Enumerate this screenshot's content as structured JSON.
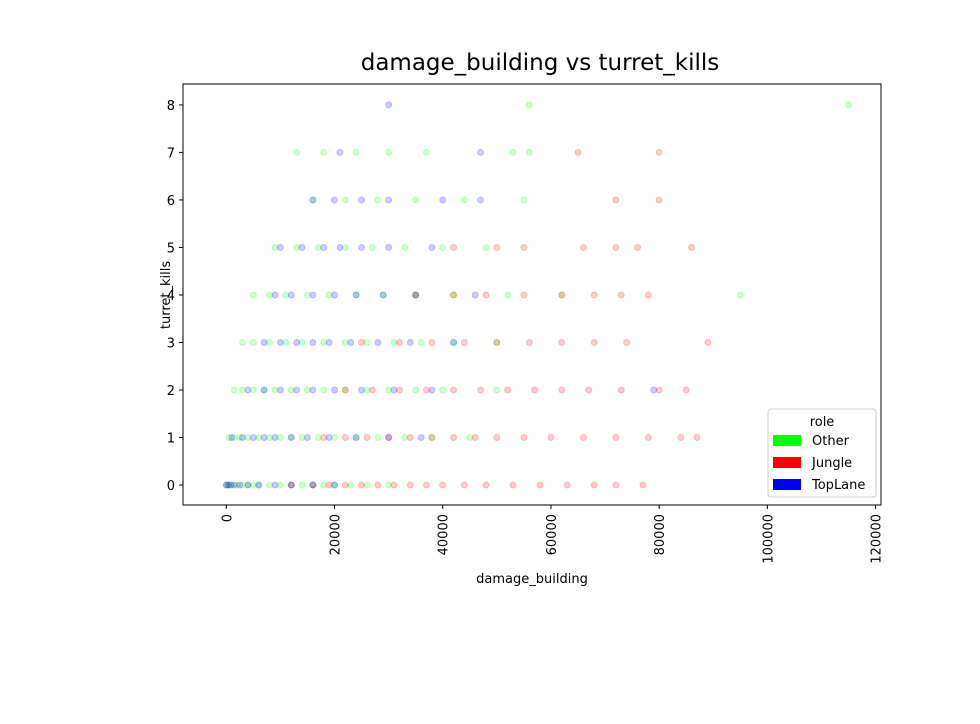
{
  "chart_data": {
    "type": "scatter",
    "title": "damage_building vs turret_kills",
    "x_label": "damage_building",
    "y_label": "turret_kills",
    "xlim": [
      -8000,
      121000
    ],
    "xticks": [
      0,
      20000,
      40000,
      60000,
      80000,
      100000,
      120000
    ],
    "ylim": [
      -0.42,
      8.44
    ],
    "yticks": [
      0,
      1,
      2,
      3,
      4,
      5,
      6,
      7,
      8
    ],
    "legend_title": "role",
    "legend": "lower right",
    "alpha": 0.2,
    "series": [
      {
        "name": "Other",
        "color": "#00ff00",
        "x": [
          0,
          500,
          1000,
          2000,
          3000,
          4000,
          5000,
          6000,
          8000,
          10000,
          12000,
          14000,
          16000,
          18000,
          20000,
          23000,
          26000,
          30000,
          500,
          1500,
          2500,
          4000,
          6000,
          8000,
          10000,
          12000,
          14000,
          17000,
          20000,
          24000,
          28000,
          33000,
          38000,
          45000,
          1500,
          3000,
          5000,
          7000,
          9000,
          12000,
          15000,
          18000,
          22000,
          26000,
          30000,
          35000,
          40000,
          50000,
          3000,
          5000,
          8000,
          11000,
          14000,
          18000,
          22000,
          26000,
          31000,
          36000,
          42000,
          50000,
          5000,
          8000,
          11000,
          15000,
          19000,
          24000,
          29000,
          35000,
          42000,
          52000,
          62000,
          95000,
          9000,
          13000,
          17000,
          22000,
          27000,
          33000,
          40000,
          48000,
          16000,
          22000,
          28000,
          35000,
          44000,
          55000,
          13000,
          18000,
          24000,
          30000,
          37000,
          53000,
          56000,
          56000,
          115000
        ],
        "values": [
          0,
          0,
          0,
          0,
          0,
          0,
          0,
          0,
          0,
          0,
          0,
          0,
          0,
          0,
          0,
          0,
          0,
          0,
          1,
          1,
          1,
          1,
          1,
          1,
          1,
          1,
          1,
          1,
          1,
          1,
          1,
          1,
          1,
          1,
          2,
          2,
          2,
          2,
          2,
          2,
          2,
          2,
          2,
          2,
          2,
          2,
          2,
          2,
          3,
          3,
          3,
          3,
          3,
          3,
          3,
          3,
          3,
          3,
          3,
          3,
          4,
          4,
          4,
          4,
          4,
          4,
          4,
          4,
          4,
          4,
          4,
          4,
          5,
          5,
          5,
          5,
          5,
          5,
          5,
          5,
          6,
          6,
          6,
          6,
          6,
          6,
          7,
          7,
          7,
          7,
          7,
          7,
          7,
          8,
          8
        ]
      },
      {
        "name": "Jungle",
        "color": "#ff0000",
        "x": [
          12000,
          16000,
          19000,
          22000,
          25000,
          28000,
          31000,
          34000,
          37000,
          40000,
          44000,
          48000,
          53000,
          58000,
          63000,
          68000,
          72000,
          77000,
          18000,
          22000,
          26000,
          30000,
          34000,
          38000,
          42000,
          46000,
          50000,
          55000,
          60000,
          66000,
          72000,
          78000,
          84000,
          87000,
          22000,
          27000,
          32000,
          37000,
          42000,
          47000,
          52000,
          57000,
          62000,
          67000,
          73000,
          80000,
          85000,
          25000,
          32000,
          38000,
          44000,
          50000,
          56000,
          62000,
          68000,
          74000,
          89000,
          35000,
          42000,
          48000,
          55000,
          62000,
          68000,
          73000,
          78000,
          42000,
          50000,
          55000,
          66000,
          72000,
          76000,
          86000,
          72000,
          80000,
          65000,
          80000
        ],
        "values": [
          0,
          0,
          0,
          0,
          0,
          0,
          0,
          0,
          0,
          0,
          0,
          0,
          0,
          0,
          0,
          0,
          0,
          0,
          1,
          1,
          1,
          1,
          1,
          1,
          1,
          1,
          1,
          1,
          1,
          1,
          1,
          1,
          1,
          1,
          2,
          2,
          2,
          2,
          2,
          2,
          2,
          2,
          2,
          2,
          2,
          2,
          2,
          3,
          3,
          3,
          3,
          3,
          3,
          3,
          3,
          3,
          3,
          4,
          4,
          4,
          4,
          4,
          4,
          4,
          4,
          5,
          5,
          5,
          5,
          5,
          5,
          5,
          6,
          6,
          7,
          7
        ]
      },
      {
        "name": "TopLane",
        "color": "#0000ff",
        "x": [
          0,
          300,
          800,
          1500,
          2500,
          4000,
          6000,
          9000,
          12000,
          16000,
          20000,
          1000,
          3000,
          5000,
          7000,
          9000,
          12000,
          15000,
          19000,
          24000,
          30000,
          36000,
          4000,
          7000,
          10000,
          13000,
          16000,
          20000,
          25000,
          31000,
          38000,
          79000,
          7000,
          10000,
          13000,
          16000,
          19000,
          23000,
          28000,
          34000,
          42000,
          9000,
          12000,
          16000,
          20000,
          24000,
          29000,
          35000,
          46000,
          10000,
          14000,
          18000,
          21000,
          25000,
          30000,
          38000,
          16000,
          20000,
          25000,
          30000,
          40000,
          47000,
          21000,
          47000,
          30000
        ],
        "values": [
          0,
          0,
          0,
          0,
          0,
          0,
          0,
          0,
          0,
          0,
          0,
          1,
          1,
          1,
          1,
          1,
          1,
          1,
          1,
          1,
          1,
          1,
          2,
          2,
          2,
          2,
          2,
          2,
          2,
          2,
          2,
          2,
          3,
          3,
          3,
          3,
          3,
          3,
          3,
          3,
          3,
          4,
          4,
          4,
          4,
          4,
          4,
          4,
          4,
          5,
          5,
          5,
          5,
          5,
          5,
          5,
          6,
          6,
          6,
          6,
          6,
          6,
          7,
          7,
          8
        ]
      }
    ]
  }
}
